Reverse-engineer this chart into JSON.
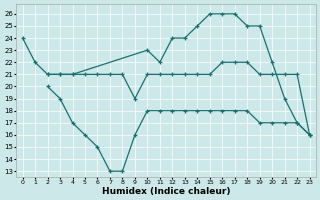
{
  "bg_color": "#cce8e8",
  "line_color": "#1a7070",
  "xlabel": "Humidex (Indice chaleur)",
  "xlim": [
    -0.5,
    23.5
  ],
  "ylim": [
    12.5,
    26.8
  ],
  "xticks": [
    0,
    1,
    2,
    3,
    4,
    5,
    6,
    7,
    8,
    9,
    10,
    11,
    12,
    13,
    14,
    15,
    16,
    17,
    18,
    19,
    20,
    21,
    22,
    23
  ],
  "yticks": [
    13,
    14,
    15,
    16,
    17,
    18,
    19,
    20,
    21,
    22,
    23,
    24,
    25,
    26
  ],
  "lines": [
    {
      "x": [
        0,
        1,
        2,
        3,
        4,
        10,
        11,
        12,
        13,
        14,
        15,
        16,
        17,
        18,
        19,
        20,
        21,
        22,
        23
      ],
      "y": [
        24,
        22,
        21,
        21,
        21,
        23,
        22,
        24,
        24,
        25,
        26,
        26,
        26,
        25,
        25,
        22,
        19,
        17,
        16
      ]
    },
    {
      "x": [
        2,
        3,
        4,
        5,
        6,
        7,
        8,
        9,
        10,
        11,
        12,
        13,
        14,
        15,
        16,
        17,
        18,
        19,
        20,
        21,
        22,
        23
      ],
      "y": [
        21,
        21,
        21,
        21,
        21,
        21,
        21,
        19,
        21,
        21,
        21,
        21,
        21,
        21,
        22,
        22,
        22,
        21,
        21,
        21,
        21,
        16
      ]
    },
    {
      "x": [
        2,
        3,
        4,
        5,
        6,
        7,
        8,
        9,
        10,
        11,
        12,
        13,
        14,
        15,
        16,
        17,
        18,
        19,
        20,
        21,
        22,
        23
      ],
      "y": [
        20,
        19,
        17,
        16,
        15,
        13,
        13,
        16,
        18,
        18,
        18,
        18,
        18,
        18,
        18,
        18,
        18,
        17,
        17,
        17,
        17,
        16
      ]
    }
  ]
}
